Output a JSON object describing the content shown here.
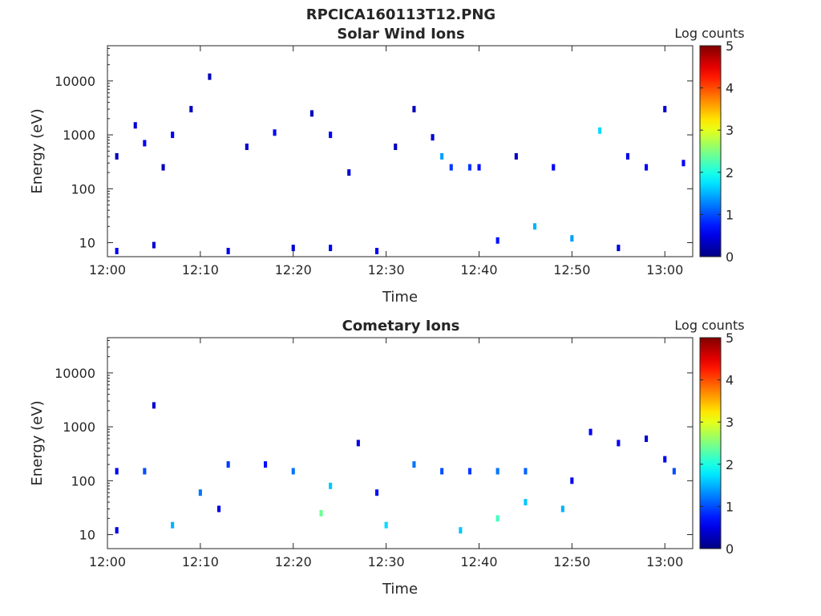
{
  "figure": {
    "title": "RPCICA160113T12.PNG"
  },
  "chart_data": [
    {
      "type": "heatmap",
      "title": "Solar Wind Ions",
      "xlabel": "Time",
      "ylabel": "Energy (eV)",
      "y_scale": "log",
      "ylim": [
        5.5,
        45000
      ],
      "xlim": [
        "12:00",
        "13:03"
      ],
      "x_ticks": [
        "12:00",
        "12:10",
        "12:20",
        "12:30",
        "12:40",
        "12:50",
        "13:00"
      ],
      "y_ticks": [
        {
          "value": 10,
          "label": "10"
        },
        {
          "value": 100,
          "label": "100"
        },
        {
          "value": 1000,
          "label": "1000"
        },
        {
          "value": 10000,
          "label": "10000"
        }
      ],
      "colorbar": {
        "label": "Log counts",
        "range": [
          0,
          5
        ],
        "ticks": [
          "0",
          "1",
          "2",
          "3",
          "4",
          "5"
        ],
        "colormap": "jet"
      },
      "points": [
        {
          "t": "12:01",
          "e": 7,
          "v": 0.6
        },
        {
          "t": "12:01",
          "e": 400,
          "v": 0.3
        },
        {
          "t": "12:03",
          "e": 1500,
          "v": 0.4
        },
        {
          "t": "12:04",
          "e": 700,
          "v": 0.6
        },
        {
          "t": "12:05",
          "e": 9,
          "v": 0.4
        },
        {
          "t": "12:06",
          "e": 250,
          "v": 0.3
        },
        {
          "t": "12:07",
          "e": 1000,
          "v": 0.6
        },
        {
          "t": "12:09",
          "e": 3000,
          "v": 0.3
        },
        {
          "t": "12:11",
          "e": 12000,
          "v": 0.3
        },
        {
          "t": "12:13",
          "e": 7,
          "v": 0.5
        },
        {
          "t": "12:15",
          "e": 600,
          "v": 0.4
        },
        {
          "t": "12:18",
          "e": 1100,
          "v": 0.6
        },
        {
          "t": "12:20",
          "e": 8,
          "v": 0.4
        },
        {
          "t": "12:22",
          "e": 2500,
          "v": 0.3
        },
        {
          "t": "12:24",
          "e": 8,
          "v": 0.6
        },
        {
          "t": "12:24",
          "e": 1000,
          "v": 0.6
        },
        {
          "t": "12:26",
          "e": 200,
          "v": 0.4
        },
        {
          "t": "12:29",
          "e": 7,
          "v": 0.6
        },
        {
          "t": "12:31",
          "e": 600,
          "v": 0.3
        },
        {
          "t": "12:33",
          "e": 3000,
          "v": 0.3
        },
        {
          "t": "12:35",
          "e": 900,
          "v": 0.4
        },
        {
          "t": "12:36",
          "e": 400,
          "v": 1.4
        },
        {
          "t": "12:37",
          "e": 250,
          "v": 0.9
        },
        {
          "t": "12:39",
          "e": 250,
          "v": 0.9
        },
        {
          "t": "12:40",
          "e": 250,
          "v": 0.7
        },
        {
          "t": "12:42",
          "e": 11,
          "v": 0.7
        },
        {
          "t": "12:44",
          "e": 400,
          "v": 0.3
        },
        {
          "t": "12:46",
          "e": 20,
          "v": 1.5
        },
        {
          "t": "12:48",
          "e": 250,
          "v": 0.6
        },
        {
          "t": "12:50",
          "e": 12,
          "v": 1.4
        },
        {
          "t": "12:53",
          "e": 1200,
          "v": 1.7
        },
        {
          "t": "12:55",
          "e": 8,
          "v": 0.5
        },
        {
          "t": "12:56",
          "e": 400,
          "v": 0.5
        },
        {
          "t": "12:58",
          "e": 250,
          "v": 0.6
        },
        {
          "t": "13:00",
          "e": 3000,
          "v": 0.4
        },
        {
          "t": "13:02",
          "e": 300,
          "v": 0.6
        }
      ]
    },
    {
      "type": "heatmap",
      "title": "Cometary Ions",
      "xlabel": "Time",
      "ylabel": "Energy (eV)",
      "y_scale": "log",
      "ylim": [
        5.5,
        45000
      ],
      "xlim": [
        "12:00",
        "13:03"
      ],
      "x_ticks": [
        "12:00",
        "12:10",
        "12:20",
        "12:30",
        "12:40",
        "12:50",
        "13:00"
      ],
      "y_ticks": [
        {
          "value": 10,
          "label": "10"
        },
        {
          "value": 100,
          "label": "100"
        },
        {
          "value": 1000,
          "label": "1000"
        },
        {
          "value": 10000,
          "label": "10000"
        }
      ],
      "colorbar": {
        "label": "Log counts",
        "range": [
          0,
          5
        ],
        "ticks": [
          "0",
          "1",
          "2",
          "3",
          "4",
          "5"
        ],
        "colormap": "jet"
      },
      "points": [
        {
          "t": "12:01",
          "e": 150,
          "v": 0.6
        },
        {
          "t": "12:01",
          "e": 12,
          "v": 0.5
        },
        {
          "t": "12:04",
          "e": 150,
          "v": 1.0
        },
        {
          "t": "12:05",
          "e": 2500,
          "v": 0.4
        },
        {
          "t": "12:07",
          "e": 15,
          "v": 1.5
        },
        {
          "t": "12:10",
          "e": 60,
          "v": 1.2
        },
        {
          "t": "12:12",
          "e": 30,
          "v": 0.5
        },
        {
          "t": "12:13",
          "e": 200,
          "v": 0.9
        },
        {
          "t": "12:17",
          "e": 200,
          "v": 0.7
        },
        {
          "t": "12:20",
          "e": 150,
          "v": 1.2
        },
        {
          "t": "12:23",
          "e": 25,
          "v": 2.4
        },
        {
          "t": "12:24",
          "e": 80,
          "v": 1.6
        },
        {
          "t": "12:27",
          "e": 500,
          "v": 0.5
        },
        {
          "t": "12:29",
          "e": 60,
          "v": 0.7
        },
        {
          "t": "12:30",
          "e": 15,
          "v": 1.7
        },
        {
          "t": "12:33",
          "e": 200,
          "v": 1.2
        },
        {
          "t": "12:36",
          "e": 150,
          "v": 1.0
        },
        {
          "t": "12:38",
          "e": 12,
          "v": 1.6
        },
        {
          "t": "12:39",
          "e": 150,
          "v": 0.9
        },
        {
          "t": "12:42",
          "e": 20,
          "v": 2.2
        },
        {
          "t": "12:42",
          "e": 150,
          "v": 1.2
        },
        {
          "t": "12:45",
          "e": 40,
          "v": 1.6
        },
        {
          "t": "12:45",
          "e": 150,
          "v": 1.1
        },
        {
          "t": "12:49",
          "e": 30,
          "v": 1.5
        },
        {
          "t": "12:50",
          "e": 100,
          "v": 0.6
        },
        {
          "t": "12:52",
          "e": 800,
          "v": 0.6
        },
        {
          "t": "12:55",
          "e": 500,
          "v": 0.6
        },
        {
          "t": "12:58",
          "e": 600,
          "v": 0.4
        },
        {
          "t": "13:00",
          "e": 250,
          "v": 0.6
        },
        {
          "t": "13:01",
          "e": 150,
          "v": 1.0
        }
      ]
    }
  ]
}
